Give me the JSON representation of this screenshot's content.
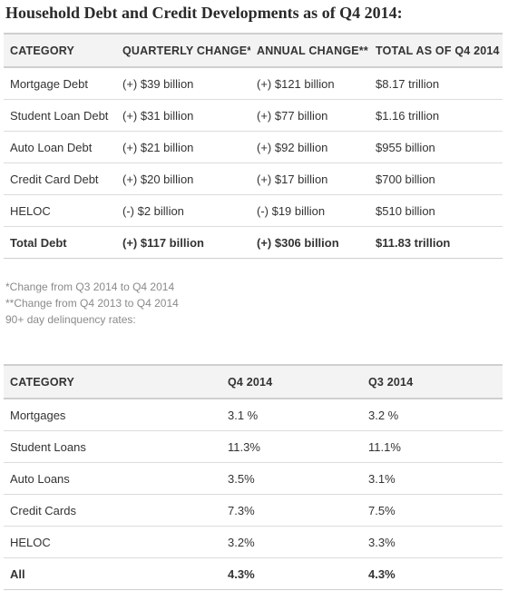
{
  "title": "Household Debt and Credit Developments as of Q4 2014:",
  "table1": {
    "headers": [
      "CATEGORY",
      "QUARTERLY CHANGE*",
      "ANNUAL CHANGE**",
      "TOTAL AS OF Q4 2014"
    ],
    "rows": [
      [
        "Mortgage Debt",
        "(+) $39 billion",
        "(+) $121 billion",
        "$8.17 trillion"
      ],
      [
        "Student Loan Debt",
        "(+) $31 billion",
        "(+) $77 billion",
        "$1.16 trillion"
      ],
      [
        "Auto Loan Debt",
        "(+) $21 billion",
        "(+) $92 billion",
        "$955 billion"
      ],
      [
        "Credit Card Debt",
        "(+) $20 billion",
        "(+) $17 billion",
        "$700 billion"
      ],
      [
        "HELOC",
        "(-) $2 billion",
        "(-) $19 billion",
        "$510 billion"
      ],
      [
        "Total Debt",
        "(+) $117 billion",
        "(+) $306 billion",
        "$11.83 trillion"
      ]
    ]
  },
  "notes": [
    "*Change from Q3 2014 to Q4 2014",
    "**Change from Q4 2013 to Q4 2014",
    "90+ day delinquency rates:"
  ],
  "table2": {
    "headers": [
      "CATEGORY",
      "Q4 2014",
      "Q3 2014"
    ],
    "rows": [
      [
        "Mortgages",
        "3.1 %",
        "3.2 %"
      ],
      [
        "Student Loans",
        "11.3%",
        "11.1%"
      ],
      [
        "Auto Loans",
        "3.5%",
        "3.1%"
      ],
      [
        "Credit Cards",
        "7.3%",
        "7.5%"
      ],
      [
        "HELOC",
        "3.2%",
        "3.3%"
      ],
      [
        "All",
        "4.3%",
        "4.3%"
      ]
    ]
  }
}
